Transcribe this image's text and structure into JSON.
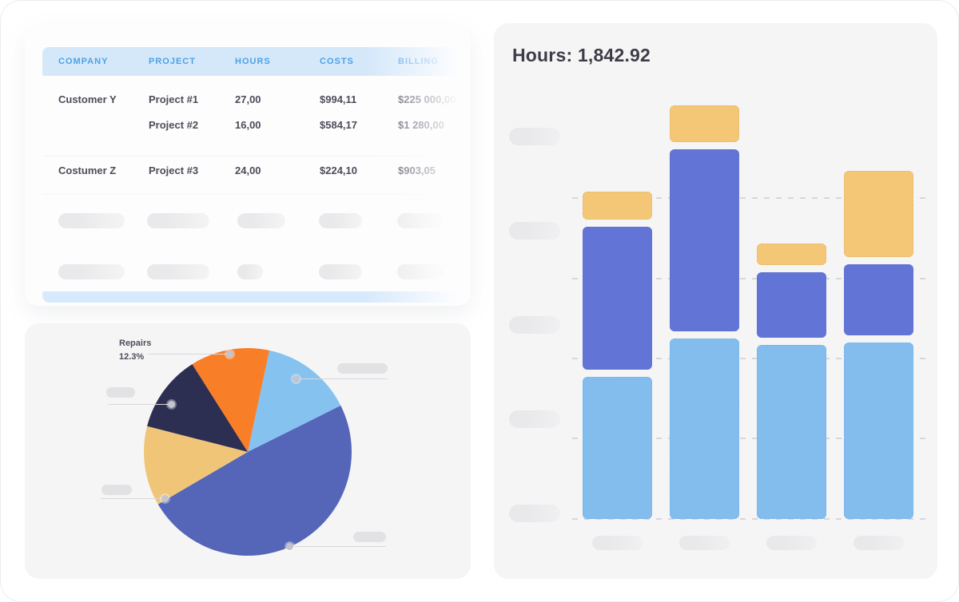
{
  "colors": {
    "table_header_text": "#4da2e6",
    "table_header_band": "#d5e8fa",
    "table_footer_strip": "#d7eafc",
    "body_text": "#4c4c59",
    "title_text": "#3d3d47",
    "bar_blue": "#82bdee",
    "bar_purple": "#6274d6",
    "bar_yellow": "#f3c776",
    "pie_blue": "#85c2f0",
    "pie_purple": "#5565b8",
    "pie_yellow": "#f0c577",
    "pie_navy": "#2d2f52",
    "pie_orange": "#f97e28"
  },
  "table_card": {
    "headers": [
      "COMPANY",
      "PROJECT",
      "HOURS",
      "COSTS",
      "BILLING"
    ],
    "rows": [
      {
        "company": "Customer Y",
        "project": "Project #1",
        "hours": "27,00",
        "costs": "$994,11",
        "billing": "$225 000,00"
      },
      {
        "company": "",
        "project": "Project #2",
        "hours": "16,00",
        "costs": "$584,17",
        "billing": "$1 280,00"
      },
      {
        "company": "Costumer Z",
        "project": "Project #3",
        "hours": "24,00",
        "costs": "$224,10",
        "billing": "$903,05"
      }
    ]
  },
  "pie_card": {
    "label": {
      "name": "Repairs",
      "pct": "12.3%"
    }
  },
  "bar_card": {
    "title": "Hours: 1,842.92"
  },
  "chart_data": [
    {
      "type": "pie",
      "title": "",
      "start_angle_deg": 12,
      "slices": [
        {
          "label": "",
          "pct": 14.3,
          "color": "#85c2f0",
          "name": "light-blue"
        },
        {
          "label": "",
          "pct": 48.95,
          "color": "#5565b8",
          "name": "purple"
        },
        {
          "label": "",
          "pct": 12.4,
          "color": "#f0c577",
          "name": "yellow"
        },
        {
          "label": "",
          "pct": 12.05,
          "color": "#2d2f52",
          "name": "navy"
        },
        {
          "label": "Repairs",
          "pct": 12.3,
          "color": "#f97e28",
          "name": "orange"
        }
      ],
      "annotation": {
        "label": "Repairs",
        "value": "12.3%"
      },
      "legend_position": "none",
      "note": "other slice labels are skeleton placeholder pills with leader lines"
    },
    {
      "type": "bar",
      "subtype": "stacked",
      "title": "Hours: 1,842.92",
      "categories": [
        "",
        "",
        "",
        ""
      ],
      "series": [
        {
          "name": "bottom-light-blue",
          "color": "#82bdee",
          "values": [
            178,
            226,
            218,
            221
          ]
        },
        {
          "name": "middle-purple",
          "color": "#6274d6",
          "values": [
            179,
            228,
            82,
            89
          ]
        },
        {
          "name": "top-yellow",
          "color": "#f3c776",
          "values": [
            35,
            46,
            27,
            108
          ]
        }
      ],
      "value_units": "relative units; 100 units = one gridline interval",
      "ylim": [
        0,
        540
      ],
      "gridlines": 5,
      "grid_style": "dashed horizontal",
      "axis_tick_labels": "skeleton placeholder pills (no text)"
    }
  ]
}
